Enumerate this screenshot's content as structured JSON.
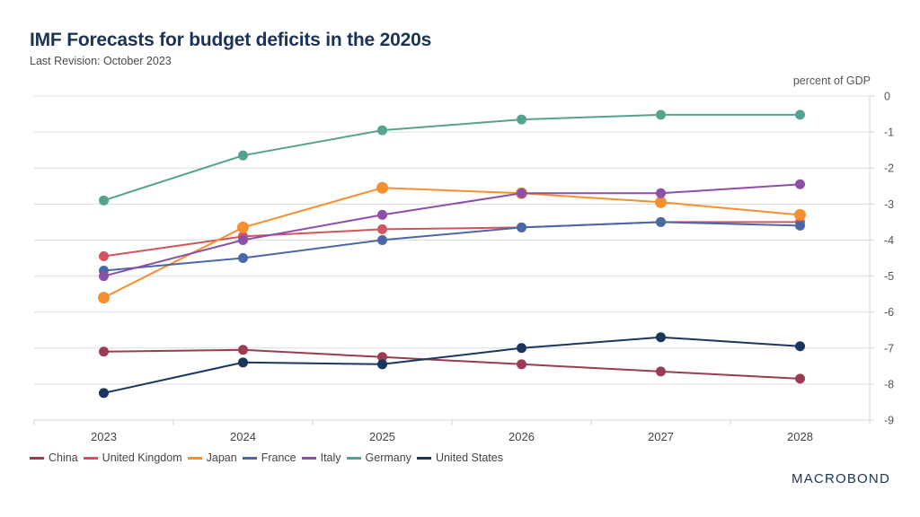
{
  "header": {
    "title": "IMF Forecasts for budget deficits in the 2020s",
    "subtitle": "Last Revision: October 2023",
    "unit_label": "percent of GDP"
  },
  "brand": {
    "name": "MACROBOND"
  },
  "chart_data": {
    "type": "line",
    "title": "IMF Forecasts for budget deficits in the 2020s",
    "subtitle": "Last Revision: October 2023",
    "xlabel": "",
    "ylabel": "percent of GDP",
    "x": [
      "2023",
      "2024",
      "2025",
      "2026",
      "2027",
      "2028"
    ],
    "ylim": [
      -9,
      0
    ],
    "yticks": [
      "0",
      "-1",
      "-2",
      "-3",
      "-4",
      "-5",
      "-6",
      "-7",
      "-8",
      "-9"
    ],
    "ytick_values": [
      0,
      -1,
      -2,
      -3,
      -4,
      -5,
      -6,
      -7,
      -8,
      -9
    ],
    "y_axis_side": "right",
    "grid": true,
    "legend_position": "bottom-left",
    "series": [
      {
        "name": "China",
        "color": "#9b3d52",
        "values": [
          -7.1,
          -7.05,
          -7.25,
          -7.45,
          -7.65,
          -7.85
        ]
      },
      {
        "name": "United Kingdom",
        "color": "#d1545e",
        "values": [
          -4.45,
          -3.9,
          -3.7,
          -3.65,
          -3.5,
          -3.5
        ]
      },
      {
        "name": "Japan",
        "color": "#f58f2f",
        "values": [
          -5.6,
          -3.65,
          -2.55,
          -2.7,
          -2.95,
          -3.3
        ]
      },
      {
        "name": "France",
        "color": "#4a67a8",
        "values": [
          -4.85,
          -4.5,
          -4.0,
          -3.65,
          -3.5,
          -3.6
        ]
      },
      {
        "name": "Italy",
        "color": "#8e4fa8",
        "values": [
          -5.0,
          -4.0,
          -3.3,
          -2.7,
          -2.7,
          -2.45
        ]
      },
      {
        "name": "Germany",
        "color": "#55a290",
        "values": [
          -2.9,
          -1.65,
          -0.95,
          -0.65,
          -0.52,
          -0.52
        ]
      },
      {
        "name": "United States",
        "color": "#1b365e",
        "values": [
          -8.25,
          -7.4,
          -7.45,
          -7.0,
          -6.7,
          -6.95
        ]
      }
    ]
  }
}
